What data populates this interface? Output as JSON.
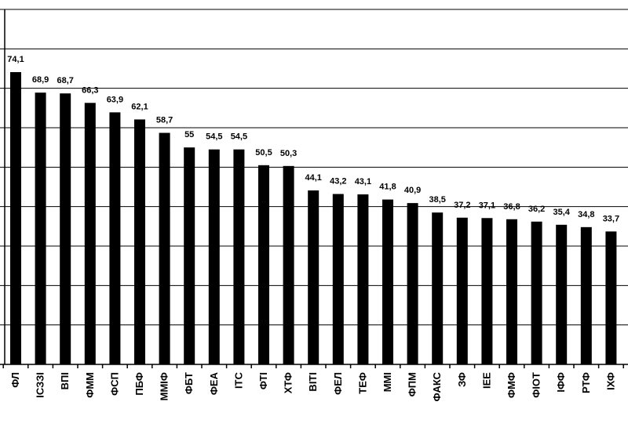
{
  "chart_data": {
    "type": "bar",
    "categories": [
      "ФЛ",
      "ІСЗЗІ",
      "ВПІ",
      "ФММ",
      "ФСП",
      "ПБФ",
      "ММІФ",
      "ФБТ",
      "ФЕА",
      "ІТС",
      "ФТІ",
      "ХТФ",
      "ВІТІ",
      "ФЕЛ",
      "ТЕФ",
      "ММІ",
      "ФПМ",
      "ФАКС",
      "ЗФ",
      "ІЕЕ",
      "ФМФ",
      "ФІОТ",
      "ІФФ",
      "РТФ",
      "ІХФ"
    ],
    "values": [
      74.1,
      68.9,
      68.7,
      66.3,
      63.9,
      62.1,
      58.7,
      55,
      54.5,
      54.5,
      50.5,
      50.3,
      44.1,
      43.2,
      43.1,
      41.8,
      40.9,
      38.5,
      37.2,
      37.1,
      36.8,
      36.2,
      35.4,
      34.8,
      33.7
    ],
    "value_labels": [
      "74,1",
      "68,9",
      "68,7",
      "66,3",
      "63,9",
      "62,1",
      "58,7",
      "55",
      "54,5",
      "54,5",
      "50,5",
      "50,3",
      "44,1",
      "43,2",
      "43,1",
      "41,8",
      "40,9",
      "38,5",
      "37,2",
      "37,1",
      "36,8",
      "36,2",
      "35,4",
      "34,8",
      "33,7"
    ],
    "title": "",
    "xlabel": "",
    "ylabel": "",
    "ylim": [
      0,
      90
    ],
    "grid": true,
    "legend": "none"
  },
  "colors": {
    "bar": "#000000",
    "grid": "#000000",
    "background": "#ffffff"
  }
}
